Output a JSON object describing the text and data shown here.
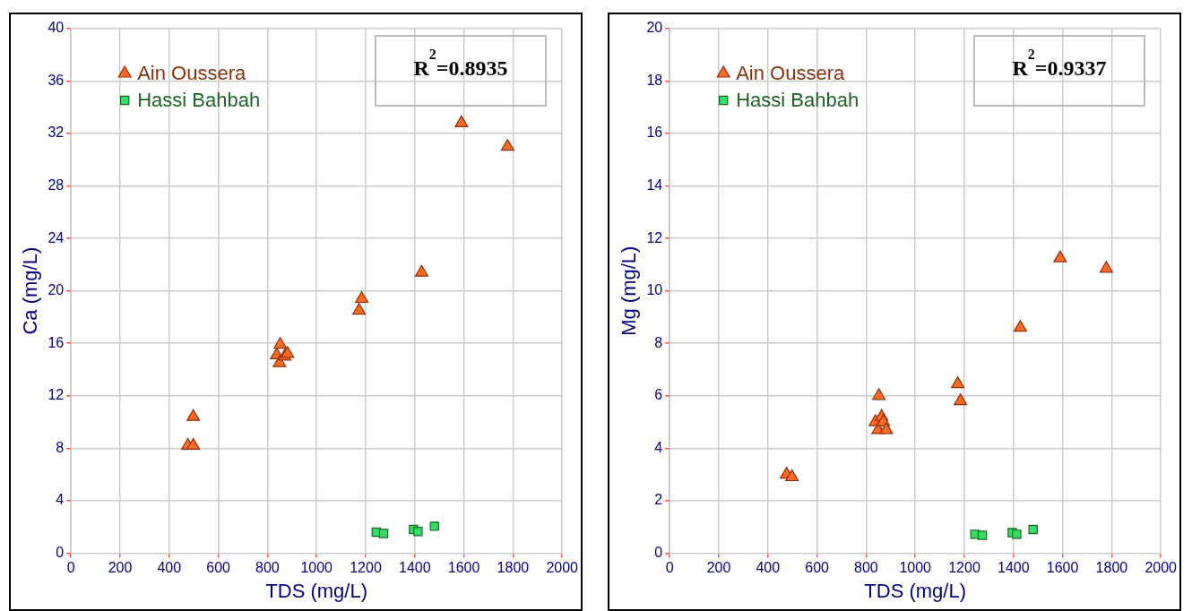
{
  "chart_data": [
    {
      "type": "scatter",
      "xlabel": "TDS (mg/L)",
      "ylabel": "Ca (mg/L)",
      "xlim": [
        0,
        2000
      ],
      "xticks": [
        0,
        200,
        400,
        600,
        800,
        1000,
        1200,
        1400,
        1600,
        1800,
        2000
      ],
      "ylim": [
        0,
        40
      ],
      "yticks": [
        0,
        4,
        8,
        12,
        16,
        20,
        24,
        28,
        32,
        36,
        40
      ],
      "grid": true,
      "legend": "top left",
      "annotations": [
        "R$^{2}$=0.8935"
      ],
      "series": [
        {
          "name": "Ain Oussera",
          "color": "#ff6a22",
          "marker": "triangle",
          "x": [
            476,
            498,
            498,
            838,
            849,
            852,
            863,
            870,
            882,
            1173,
            1184,
            1428,
            1590,
            1778
          ],
          "values": [
            8.2,
            8.2,
            10.4,
            15.1,
            14.5,
            15.9,
            null,
            15.0,
            15.2,
            18.5,
            19.4,
            21.4,
            32.8,
            31.0
          ]
        },
        {
          "name": "Hassi Bahbah",
          "color": "#33dd66",
          "marker": "square",
          "x": [
            1243,
            1273,
            1395,
            1413,
            1480
          ],
          "values": [
            1.6,
            1.5,
            1.8,
            1.65,
            2.05
          ]
        }
      ]
    },
    {
      "type": "scatter",
      "xlabel": "TDS (mg/L)",
      "ylabel": "Mg (mg/L)",
      "xlim": [
        0,
        2000
      ],
      "xticks": [
        0,
        200,
        400,
        600,
        800,
        1000,
        1200,
        1400,
        1600,
        1800,
        2000
      ],
      "ylim": [
        0,
        20
      ],
      "yticks": [
        0,
        2,
        4,
        6,
        8,
        10,
        12,
        14,
        16,
        18,
        20
      ],
      "grid": true,
      "legend": "top left",
      "annotations": [
        "R$^{2}$=0.9337"
      ],
      "series": [
        {
          "name": "Ain Oussera",
          "color": "#ff6a22",
          "marker": "triangle",
          "x": [
            476,
            498,
            838,
            849,
            852,
            863,
            870,
            882,
            1173,
            1184,
            1428,
            1590,
            1778
          ],
          "values": [
            3.0,
            2.9,
            5.0,
            4.7,
            6.0,
            5.2,
            5.0,
            4.7,
            6.45,
            5.8,
            8.6,
            11.25,
            10.85
          ]
        },
        {
          "name": "Hassi Bahbah",
          "color": "#33dd66",
          "marker": "square",
          "x": [
            1243,
            1273,
            1395,
            1413,
            1480
          ],
          "values": [
            0.72,
            0.68,
            0.78,
            0.72,
            0.9
          ]
        }
      ]
    }
  ]
}
